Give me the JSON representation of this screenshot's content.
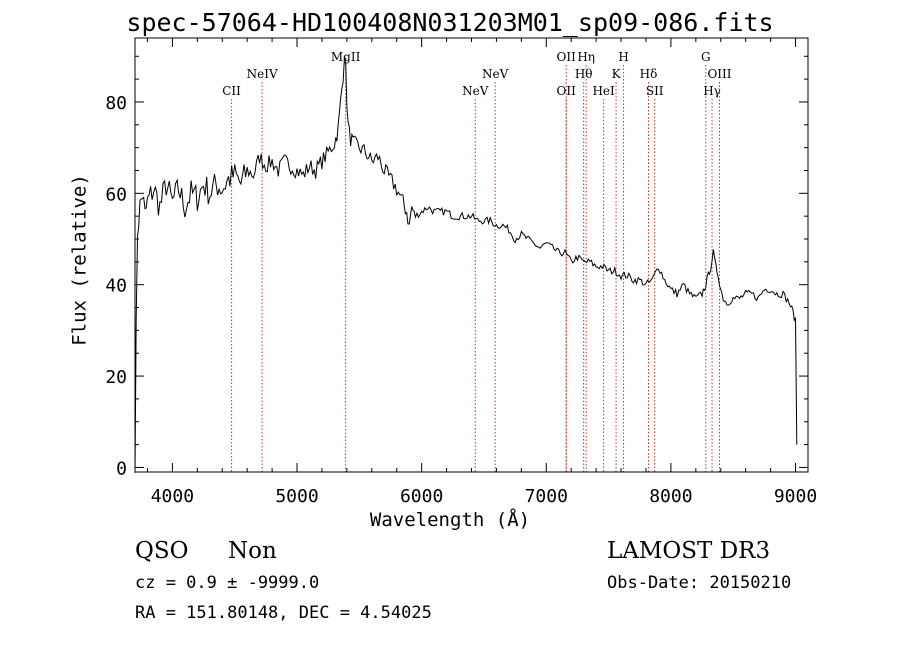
{
  "title": "spec-57064-HD100408N031203M01_sp09-086.fits",
  "classification": "QSO",
  "subclass": "Non",
  "survey": "LAMOST DR3",
  "cz_line": "cz = 0.9 ± -9999.0",
  "obs_date": "Obs-Date: 20150210",
  "radec_line": "RA = 151.80148, DEC =   4.54025",
  "chart_data": {
    "type": "line",
    "xlabel": "Wavelength (Å)",
    "ylabel": "Flux (relative)",
    "xlim": [
      3700,
      9100
    ],
    "ylim": [
      -1,
      94
    ],
    "xticks": [
      4000,
      5000,
      6000,
      7000,
      8000,
      9000
    ],
    "yticks": [
      0,
      20,
      40,
      60,
      80
    ],
    "grid": false,
    "series": [
      {
        "x": [
          3700,
          3710,
          3720,
          3740,
          3760,
          3780,
          3800,
          3850,
          3900,
          3950,
          4000,
          4050,
          4100,
          4150,
          4200,
          4250,
          4300,
          4350,
          4400,
          4450,
          4500,
          4550,
          4600,
          4650,
          4700,
          4750,
          4800,
          4850,
          4900,
          4950,
          5000,
          5050,
          5100,
          5150,
          5200,
          5250,
          5300,
          5330,
          5350,
          5370,
          5380,
          5390,
          5400,
          5410,
          5420,
          5430,
          5450,
          5500,
          5550,
          5600,
          5650,
          5700,
          5750,
          5800,
          5850,
          5880,
          5900,
          5920,
          5950,
          6000,
          6050,
          6100,
          6150,
          6200,
          6250,
          6300,
          6350,
          6400,
          6450,
          6500,
          6550,
          6600,
          6650,
          6700,
          6750,
          6800,
          6850,
          6900,
          6950,
          7000,
          7050,
          7100,
          7150,
          7200,
          7250,
          7300,
          7350,
          7400,
          7450,
          7500,
          7550,
          7600,
          7650,
          7700,
          7750,
          7800,
          7850,
          7900,
          7950,
          8000,
          8050,
          8100,
          8150,
          8200,
          8250,
          8280,
          8300,
          8320,
          8340,
          8360,
          8380,
          8400,
          8420,
          8450,
          8500,
          8550,
          8600,
          8650,
          8700,
          8750,
          8800,
          8850,
          8900,
          8950,
          8980,
          9000,
          9010
        ],
        "y": [
          2,
          30,
          52,
          57,
          60,
          55,
          58,
          61,
          57,
          62,
          58,
          61,
          57,
          60,
          59,
          62,
          60,
          62,
          61,
          63,
          64,
          62,
          65,
          64,
          68,
          66,
          67,
          65,
          67,
          66,
          65,
          64,
          66,
          65,
          67,
          69,
          71,
          74,
          80,
          86,
          91,
          88,
          80,
          75,
          73,
          72,
          71,
          70,
          69,
          67,
          68,
          65,
          63,
          61,
          58,
          56,
          53,
          57,
          55,
          56,
          57,
          56,
          56,
          56,
          55,
          55,
          55,
          55,
          54,
          54,
          54,
          53,
          53,
          52,
          50,
          51,
          50,
          49,
          48,
          49,
          48,
          47,
          47,
          45,
          46,
          45,
          45,
          44,
          44,
          43,
          43,
          42,
          42,
          41,
          41,
          40,
          41,
          44,
          41,
          39,
          38,
          40,
          38,
          37,
          38,
          40,
          42,
          44,
          47,
          44,
          42,
          39,
          37,
          36,
          37,
          37,
          38,
          38,
          37,
          39,
          39,
          38,
          38,
          36,
          34,
          32,
          5
        ]
      }
    ],
    "lines": [
      {
        "label": "CII",
        "x": 4475,
        "row": 2
      },
      {
        "label": "NeIV",
        "x": 4720,
        "row": 1
      },
      {
        "label": "MgII",
        "x": 5390,
        "row": 0
      },
      {
        "label": "NeV",
        "x": 6430,
        "row": 2
      },
      {
        "label": "NeV",
        "x": 6590,
        "row": 1
      },
      {
        "label": "OII",
        "x": 7160,
        "row": 0
      },
      {
        "label": "OII",
        "x": 7160,
        "row": 2
      },
      {
        "label": "Hη",
        "x": 7320,
        "row": 0
      },
      {
        "label": "Hθ",
        "x": 7300,
        "row": 1
      },
      {
        "label": "HeI",
        "x": 7460,
        "row": 2
      },
      {
        "label": "K",
        "x": 7560,
        "row": 1
      },
      {
        "label": "H",
        "x": 7620,
        "row": 0
      },
      {
        "label": "Hδ",
        "x": 7820,
        "row": 1
      },
      {
        "label": "SII",
        "x": 7870,
        "row": 2
      },
      {
        "label": "G",
        "x": 8280,
        "row": 0
      },
      {
        "label": "Hγ",
        "x": 8330,
        "row": 2
      },
      {
        "label": "OIII",
        "x": 8390,
        "row": 1
      }
    ]
  }
}
